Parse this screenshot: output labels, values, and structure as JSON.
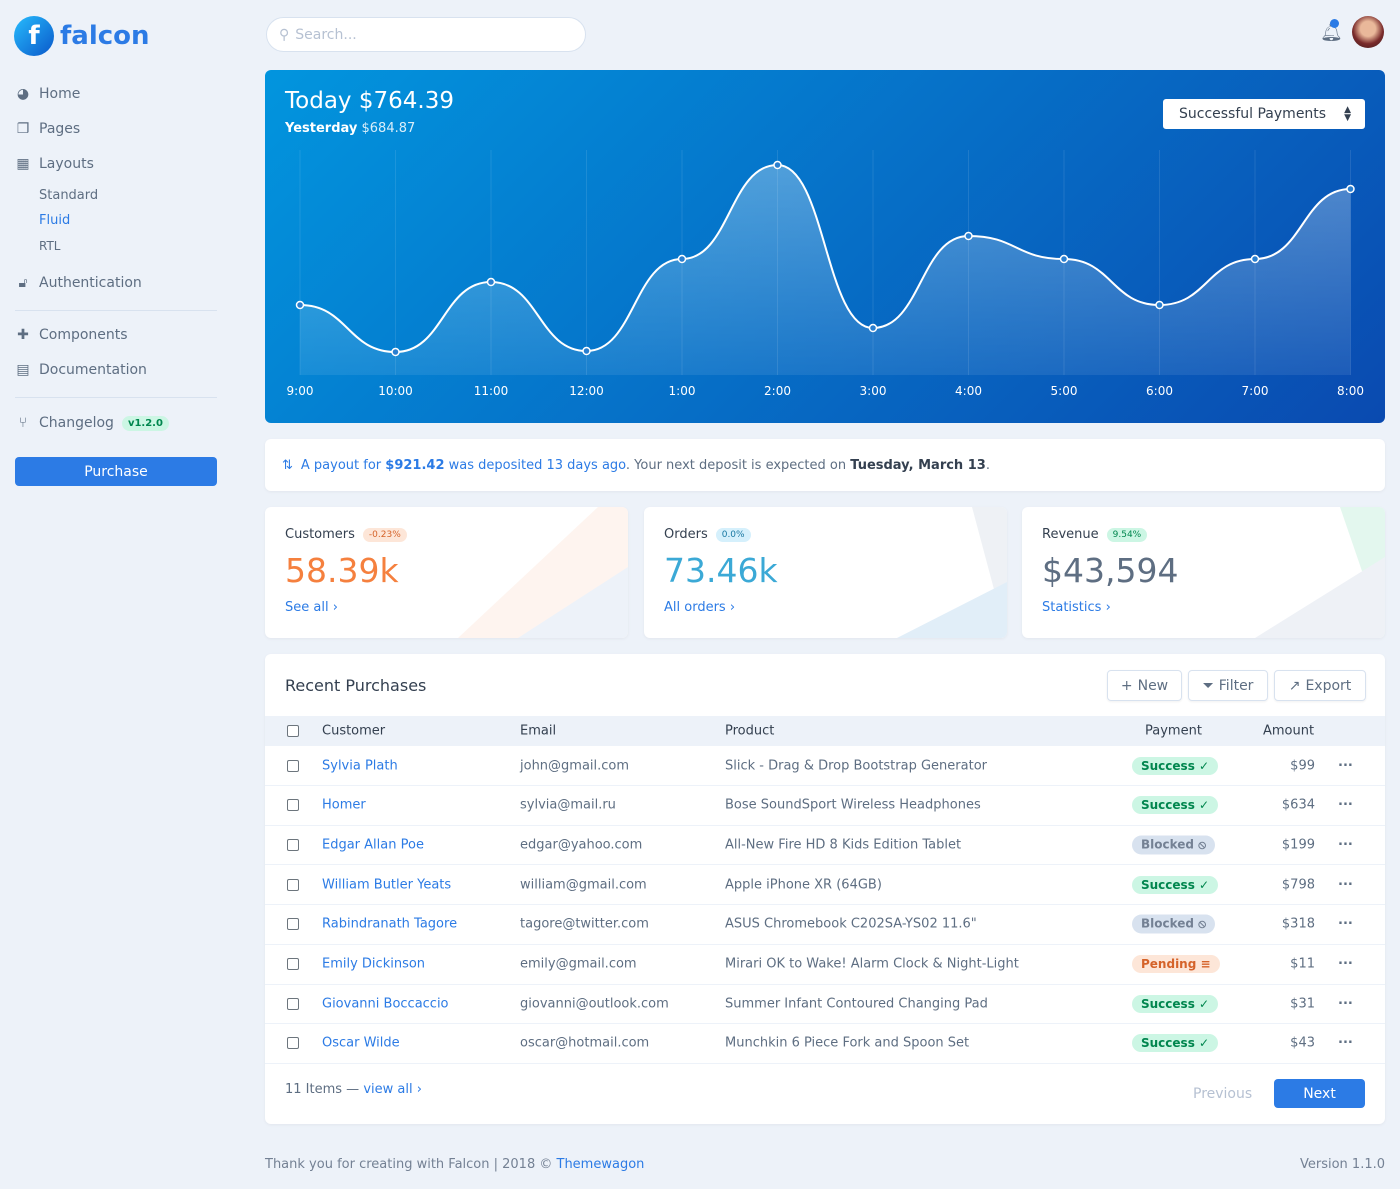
{
  "brand": {
    "name": "falcon",
    "logo_letter": "f"
  },
  "sidebar": {
    "items": [
      {
        "label": "Home",
        "icon": "pie-chart-icon"
      },
      {
        "label": "Pages",
        "icon": "copy-icon"
      },
      {
        "label": "Layouts",
        "icon": "qrcode-icon"
      }
    ],
    "layouts_sub": [
      {
        "label": "Standard",
        "active": false
      },
      {
        "label": "Fluid",
        "active": true
      },
      {
        "label": "RTL",
        "active": false
      }
    ],
    "auth": {
      "label": "Authentication",
      "icon": "unlock-icon"
    },
    "components": {
      "label": "Components",
      "icon": "puzzle-icon"
    },
    "documentation": {
      "label": "Documentation",
      "icon": "book-icon"
    },
    "changelog": {
      "label": "Changelog",
      "badge": "v1.2.0",
      "icon": "code-branch-icon"
    },
    "purchase": "Purchase"
  },
  "header": {
    "search_placeholder": "Search..."
  },
  "hero": {
    "today_label": "Today",
    "today_value": "$764.39",
    "yesterday_label": "Yesterday",
    "yesterday_value": "$684.87",
    "select": "Successful Payments"
  },
  "chart_data": {
    "type": "area",
    "x": [
      "9:00",
      "10:00",
      "11:00",
      "12:00",
      "1:00",
      "2:00",
      "3:00",
      "4:00",
      "5:00",
      "6:00",
      "7:00",
      "8:00"
    ],
    "values": [
      70,
      23,
      93,
      24,
      116,
      210,
      47,
      139,
      116,
      70,
      116,
      186
    ],
    "grid": true
  },
  "payout": {
    "prefix": "A payout for",
    "amount": "$921.42",
    "middle": "was deposited 13 days ago",
    "suffix": ". Your next deposit is expected on",
    "date": "Tuesday, March 13",
    "end": "."
  },
  "cards": [
    {
      "title": "Customers",
      "badge": "-0.23%",
      "value": "58.39k",
      "link": "See all",
      "color": "#f5803e",
      "badge_bg": "#fde6d8",
      "badge_fg": "#d5632a"
    },
    {
      "title": "Orders",
      "badge": "0.0%",
      "value": "73.46k",
      "link": "All orders",
      "color": "#27bcfd",
      "badge_bg": "#d5f0fc",
      "badge_fg": "#1978a2"
    },
    {
      "title": "Revenue",
      "badge": "9.54%",
      "value": "$43,594",
      "link": "Statistics",
      "color": "#5e6e82",
      "badge_bg": "#ccf6e4",
      "badge_fg": "#00864e"
    }
  ],
  "purchases": {
    "title": "Recent Purchases",
    "buttons": {
      "new": "New",
      "filter": "Filter",
      "export": "Export"
    },
    "columns": [
      "Customer",
      "Email",
      "Product",
      "Payment",
      "Amount"
    ],
    "rows": [
      {
        "customer": "Sylvia Plath",
        "email": "john@gmail.com",
        "product": "Slick - Drag & Drop Bootstrap Generator",
        "status": "Success",
        "amount": "$99"
      },
      {
        "customer": "Homer",
        "email": "sylvia@mail.ru",
        "product": "Bose SoundSport Wireless Headphones",
        "status": "Success",
        "amount": "$634"
      },
      {
        "customer": "Edgar Allan Poe",
        "email": "edgar@yahoo.com",
        "product": "All-New Fire HD 8 Kids Edition Tablet",
        "status": "Blocked",
        "amount": "$199"
      },
      {
        "customer": "William Butler Yeats",
        "email": "william@gmail.com",
        "product": "Apple iPhone XR (64GB)",
        "status": "Success",
        "amount": "$798"
      },
      {
        "customer": "Rabindranath Tagore",
        "email": "tagore@twitter.com",
        "product": "ASUS Chromebook C202SA-YS02 11.6\"",
        "status": "Blocked",
        "amount": "$318"
      },
      {
        "customer": "Emily Dickinson",
        "email": "emily@gmail.com",
        "product": "Mirari OK to Wake! Alarm Clock & Night-Light",
        "status": "Pending",
        "amount": "$11"
      },
      {
        "customer": "Giovanni Boccaccio",
        "email": "giovanni@outlook.com",
        "product": "Summer Infant Contoured Changing Pad",
        "status": "Success",
        "amount": "$31"
      },
      {
        "customer": "Oscar Wilde",
        "email": "oscar@hotmail.com",
        "product": "Munchkin 6 Piece Fork and Spoon Set",
        "status": "Success",
        "amount": "$43"
      }
    ],
    "count": "11 Items —",
    "view_all": "view all",
    "previous": "Previous",
    "next": "Next"
  },
  "footer": {
    "text": "Thank you for creating with Falcon | 2018 ©",
    "link": "Themewagon",
    "version": "Version 1.1.0"
  }
}
